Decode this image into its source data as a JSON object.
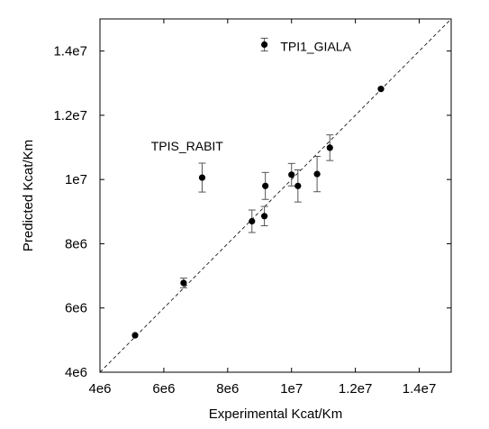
{
  "chart_data": {
    "type": "scatter",
    "xlabel": "Experimental Kcat/Km",
    "ylabel": "Predicted Kcat/Km",
    "xlim": [
      4000000,
      15000000
    ],
    "ylim": [
      4000000,
      15000000
    ],
    "x_ticks": [
      {
        "value": 4000000,
        "label": "4e6"
      },
      {
        "value": 6000000,
        "label": "6e6"
      },
      {
        "value": 8000000,
        "label": "8e6"
      },
      {
        "value": 10000000,
        "label": "1e7"
      },
      {
        "value": 12000000,
        "label": "1.2e7"
      },
      {
        "value": 14000000,
        "label": "1.4e7"
      }
    ],
    "y_ticks": [
      {
        "value": 4000000,
        "label": "4e6"
      },
      {
        "value": 6000000,
        "label": "6e6"
      },
      {
        "value": 8000000,
        "label": "8e6"
      },
      {
        "value": 10000000,
        "label": "1e7"
      },
      {
        "value": 12000000,
        "label": "1.2e7"
      },
      {
        "value": 14000000,
        "label": "1.4e7"
      }
    ],
    "grid": false,
    "reference_line": "y = x (dashed)",
    "points": [
      {
        "x": 5100000,
        "y": 5150000,
        "err": 0
      },
      {
        "x": 6620000,
        "y": 6780000,
        "err": 150000
      },
      {
        "x": 7200000,
        "y": 10060000,
        "err": 450000
      },
      {
        "x": 8760000,
        "y": 8700000,
        "err": 350000
      },
      {
        "x": 9150000,
        "y": 8860000,
        "err": 300000
      },
      {
        "x": 9150000,
        "y": 14200000,
        "err": 200000
      },
      {
        "x": 9180000,
        "y": 9800000,
        "err": 420000
      },
      {
        "x": 10000000,
        "y": 10150000,
        "err": 350000
      },
      {
        "x": 10200000,
        "y": 9800000,
        "err": 500000
      },
      {
        "x": 10800000,
        "y": 10170000,
        "err": 550000
      },
      {
        "x": 11200000,
        "y": 10990000,
        "err": 400000
      },
      {
        "x": 12800000,
        "y": 12820000,
        "err": 0
      }
    ],
    "annotations": [
      {
        "text": "TPI1_GIALA",
        "x": 9650000,
        "y": 14000000
      },
      {
        "text": "TPIS_RABIT",
        "x": 5600000,
        "y": 10900000
      }
    ]
  }
}
